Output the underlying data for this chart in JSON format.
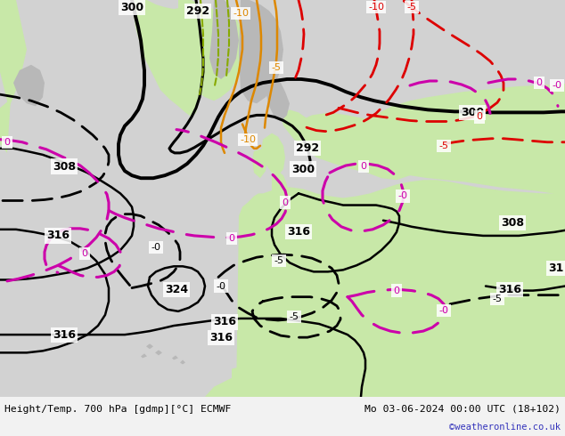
{
  "title_left": "Height/Temp. 700 hPa [gdmp][°C] ECMWF",
  "title_right": "Mo 03-06-2024 00:00 UTC (18+102)",
  "credit": "©weatheronline.co.uk",
  "color_sea": "#d2d2d2",
  "color_land_green": "#c8e8a8",
  "color_land_gray": "#b8b8b8",
  "color_height": "#000000",
  "color_temp_black": "#000000",
  "color_temp_red": "#dd0000",
  "color_temp_orange": "#dd8800",
  "color_temp_magenta": "#cc00aa",
  "color_temp_green": "#88aa00",
  "figsize": [
    6.34,
    4.9
  ],
  "dpi": 100
}
